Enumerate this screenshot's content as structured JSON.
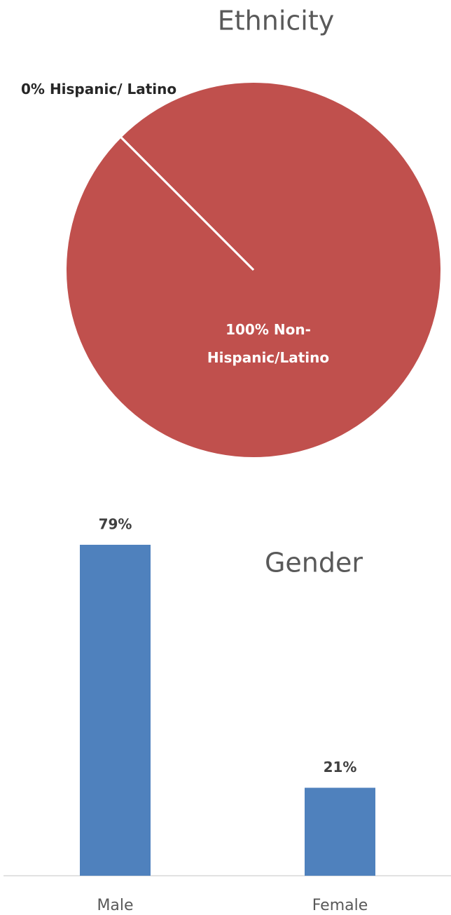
{
  "chart_data": [
    {
      "type": "pie",
      "title": "Ethnicity",
      "categories": [
        "Hispanic/ Latino",
        "Non-Hispanic/Latino"
      ],
      "values": [
        0,
        100
      ],
      "value_labels": [
        "0%",
        "100%"
      ],
      "colors": [
        "#c0504d",
        "#c0504d"
      ]
    },
    {
      "type": "bar",
      "title": "Gender",
      "categories": [
        "Male",
        "Female"
      ],
      "values": [
        79,
        21
      ],
      "value_labels": [
        "79%",
        "21%"
      ],
      "color": "#4f81bd"
    }
  ]
}
